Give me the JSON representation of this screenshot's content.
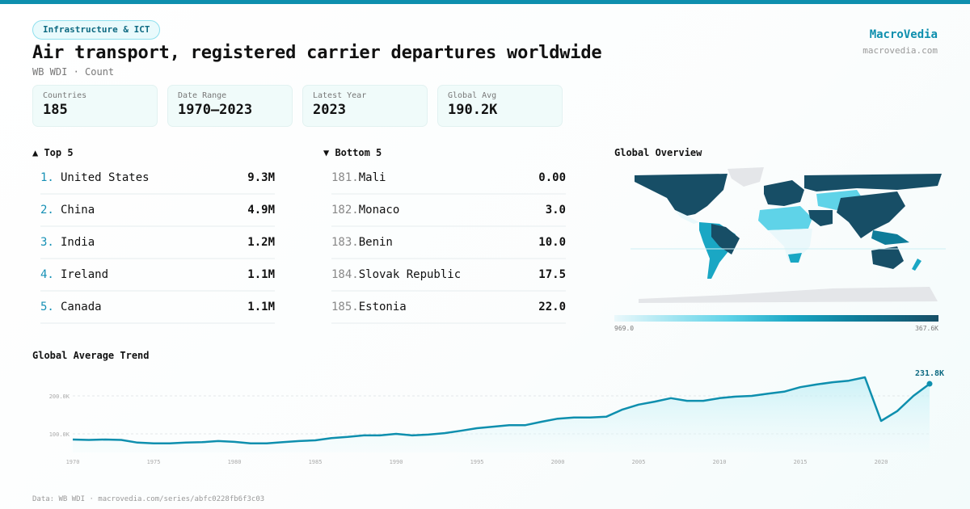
{
  "category": "Infrastructure & ICT",
  "title": "Air transport, registered carrier departures worldwide",
  "subtitle": "WB WDI · Count",
  "brand": {
    "name": "MacroVedia",
    "url": "macrovedia.com"
  },
  "stats": [
    {
      "label": "Countries",
      "value": "185"
    },
    {
      "label": "Date Range",
      "value": "1970–2023"
    },
    {
      "label": "Latest Year",
      "value": "2023"
    },
    {
      "label": "Global Avg",
      "value": "190.2K"
    }
  ],
  "top5": {
    "title": "▲ Top 5",
    "items": [
      {
        "rank": "1.",
        "name": "United States",
        "value": "9.3M"
      },
      {
        "rank": "2.",
        "name": "China",
        "value": "4.9M"
      },
      {
        "rank": "3.",
        "name": "India",
        "value": "1.2M"
      },
      {
        "rank": "4.",
        "name": "Ireland",
        "value": "1.1M"
      },
      {
        "rank": "5.",
        "name": "Canada",
        "value": "1.1M"
      }
    ]
  },
  "bottom5": {
    "title": "▼ Bottom 5",
    "items": [
      {
        "rank": "181.",
        "name": "Mali",
        "value": "0.00"
      },
      {
        "rank": "182.",
        "name": "Monaco",
        "value": "3.0"
      },
      {
        "rank": "183.",
        "name": "Benin",
        "value": "10.0"
      },
      {
        "rank": "184.",
        "name": "Slovak Republic",
        "value": "17.5"
      },
      {
        "rank": "185.",
        "name": "Estonia",
        "value": "22.0"
      }
    ]
  },
  "map": {
    "title": "Global Overview",
    "legend_min": "969.0",
    "legend_max": "367.6K",
    "colors": [
      "#eaf8fb",
      "#5fd3e8",
      "#1aa7c4",
      "#0e7c99",
      "#174e66"
    ],
    "no_data": "#e4e6e9"
  },
  "chart_data": {
    "type": "area",
    "title": "Global Average Trend",
    "xlabel": "",
    "ylabel": "",
    "x": [
      1970,
      1971,
      1972,
      1973,
      1974,
      1975,
      1976,
      1977,
      1978,
      1979,
      1980,
      1981,
      1982,
      1983,
      1984,
      1985,
      1986,
      1987,
      1988,
      1989,
      1990,
      1991,
      1992,
      1993,
      1994,
      1995,
      1996,
      1997,
      1998,
      1999,
      2000,
      2001,
      2002,
      2003,
      2004,
      2005,
      2006,
      2007,
      2008,
      2009,
      2010,
      2011,
      2012,
      2013,
      2014,
      2015,
      2016,
      2017,
      2018,
      2019,
      2020,
      2021,
      2022,
      2023
    ],
    "values": [
      85000,
      84000,
      85000,
      84000,
      77000,
      75000,
      75000,
      77000,
      78000,
      81000,
      79000,
      75000,
      75000,
      78000,
      81000,
      83000,
      89000,
      92000,
      96000,
      96000,
      100000,
      96000,
      98000,
      102000,
      108000,
      115000,
      119000,
      123000,
      123000,
      132000,
      140000,
      143000,
      143000,
      145000,
      164000,
      177000,
      185000,
      194000,
      187000,
      187000,
      194000,
      198000,
      200000,
      206000,
      211000,
      223000,
      230000,
      236000,
      240000,
      249000,
      134000,
      160000,
      200000,
      231800
    ],
    "yticks": [
      {
        "v": 100000,
        "label": "100.0K"
      },
      {
        "v": 200000,
        "label": "200.0K"
      }
    ],
    "xticks": [
      "1970",
      "1975",
      "1980",
      "1985",
      "1990",
      "1995",
      "2000",
      "2005",
      "2010",
      "2015",
      "2020"
    ],
    "last_label": "231.8K",
    "ylim": [
      50000,
      260000
    ],
    "color": "#0e8fae",
    "grid": true
  },
  "footer": "Data: WB WDI · macrovedia.com/series/abfc0228fb6f3c03"
}
